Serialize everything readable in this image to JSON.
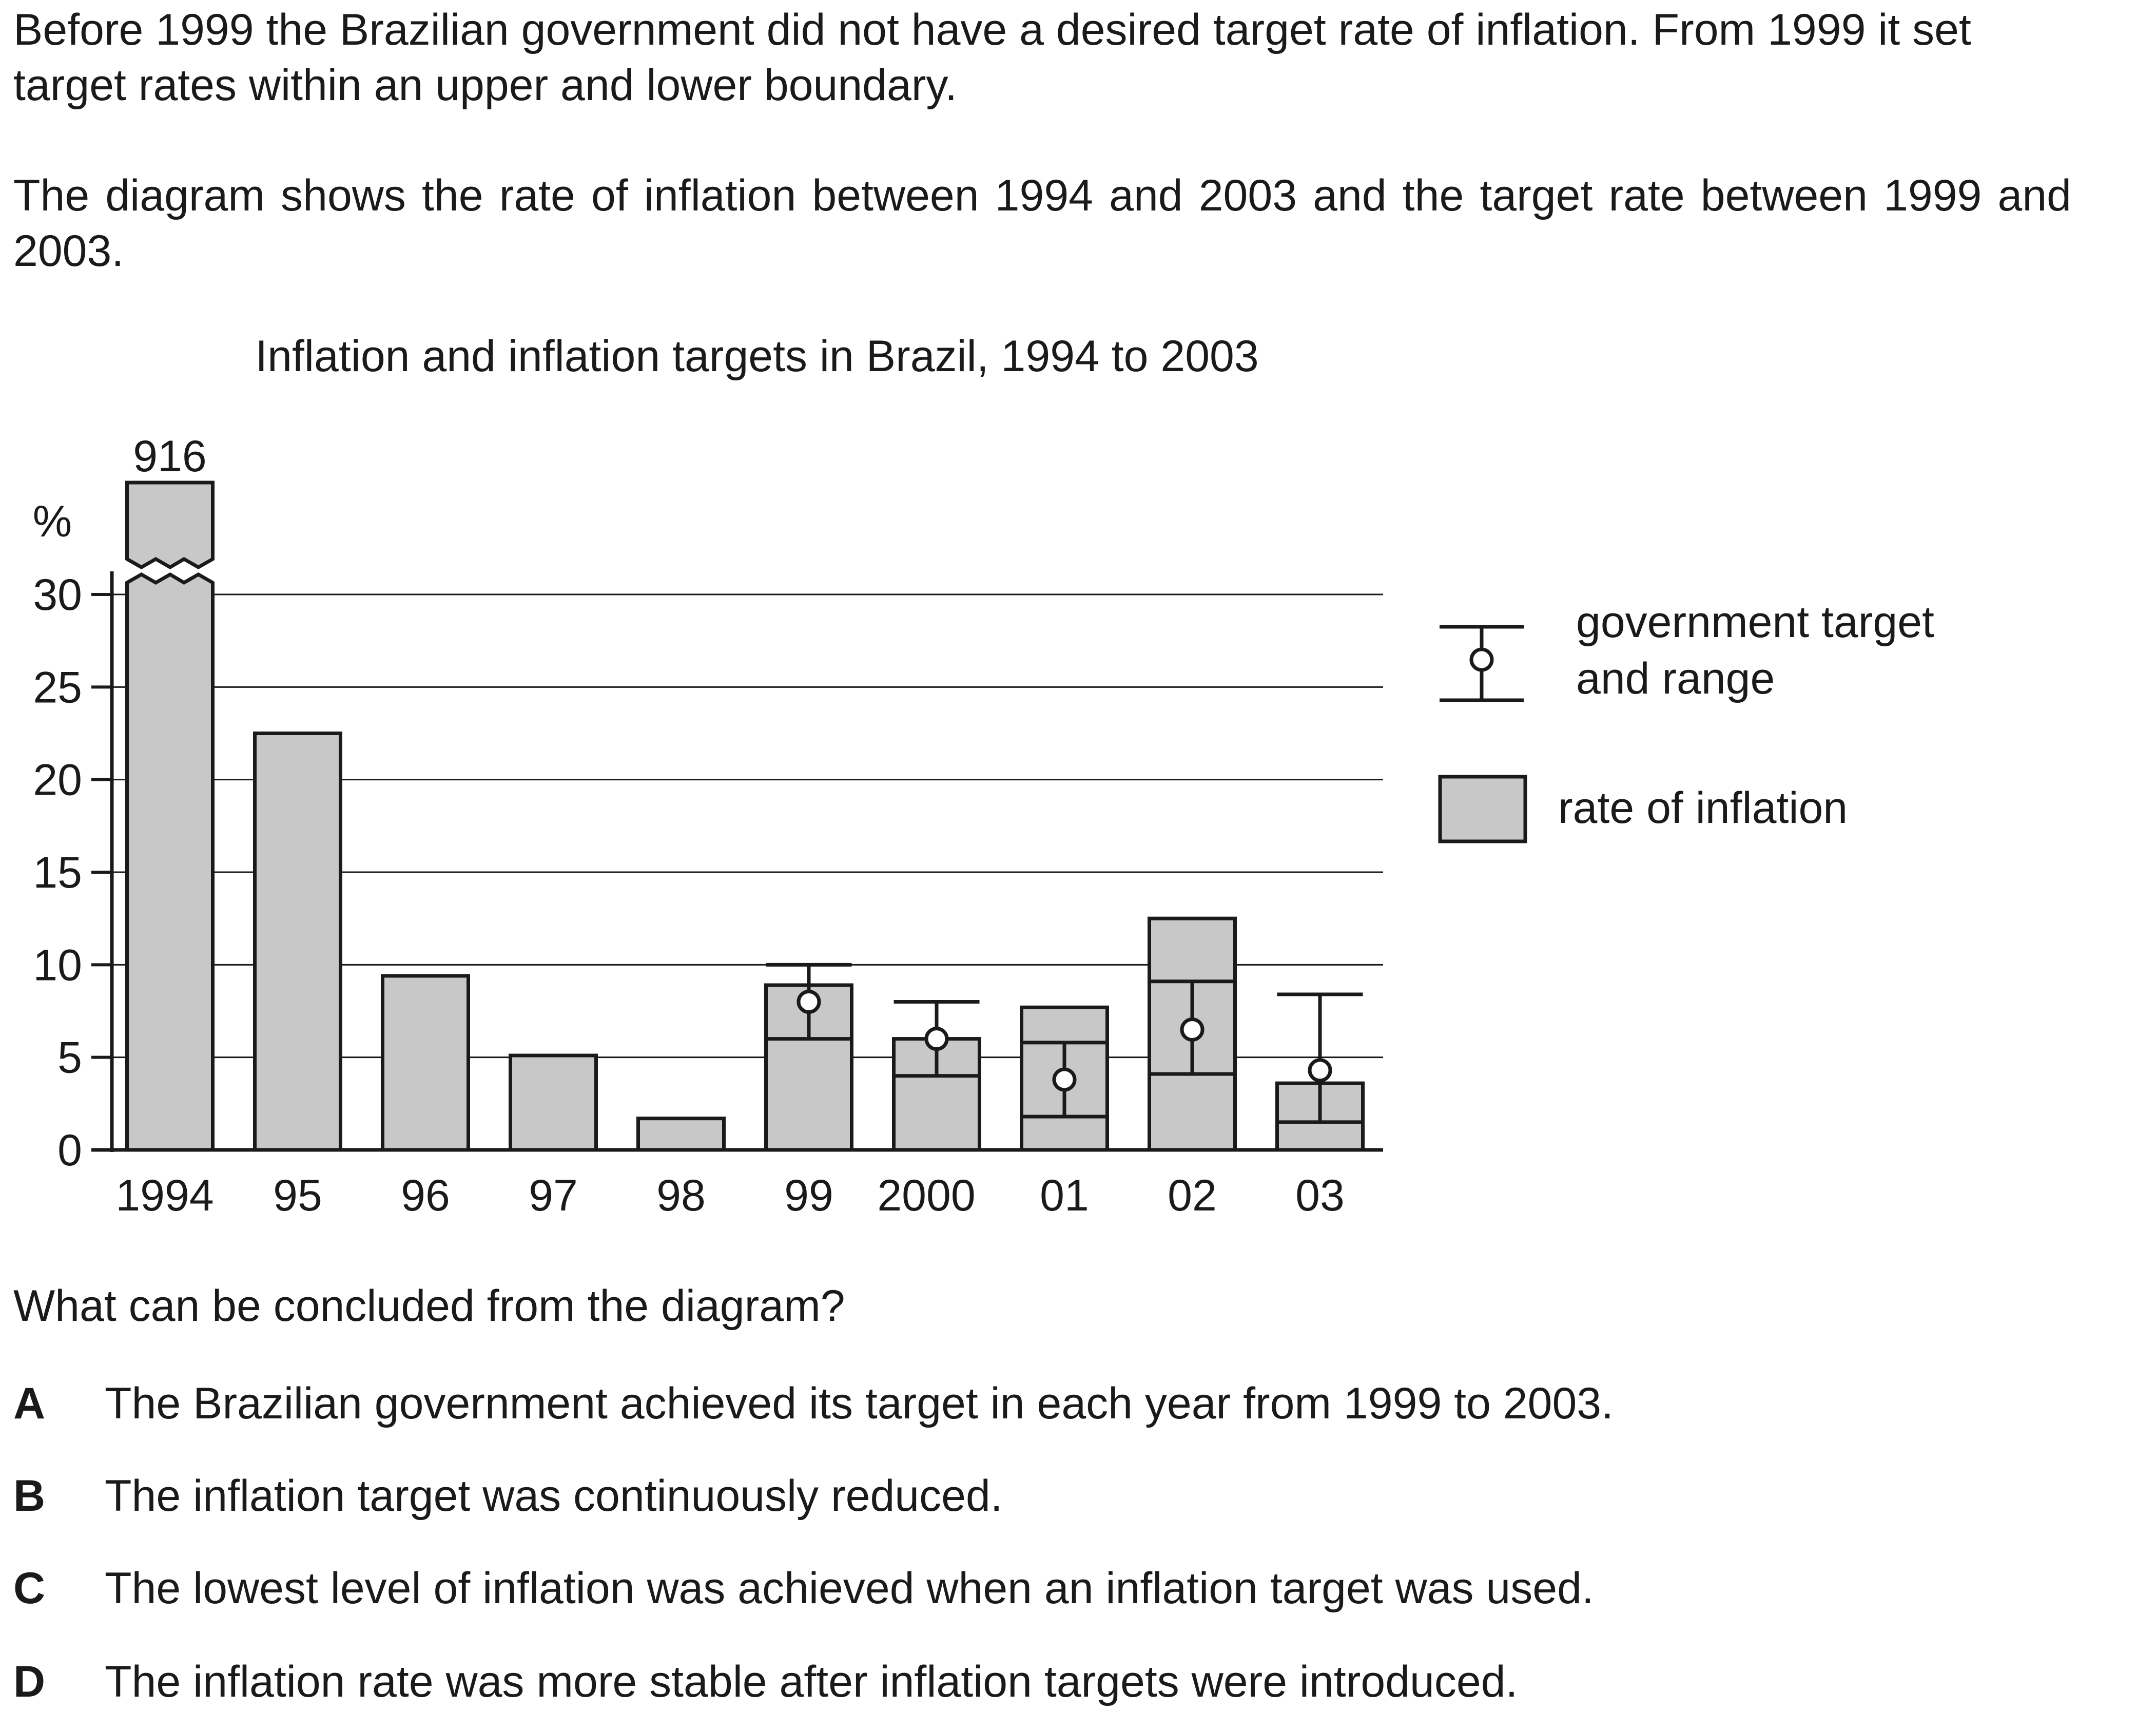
{
  "intro": {
    "p1": "Before 1999 the Brazilian government did not have a desired target rate of inflation. From 1999 it set target rates within an upper and lower boundary.",
    "p2": "The diagram shows the rate of inflation between 1994 and 2003 and the target rate between 1999 and 2003."
  },
  "chart_data": {
    "type": "bar",
    "title": "Inflation and inflation targets in Brazil, 1994 to 2003",
    "ylabel": "%",
    "ylim": [
      0,
      30
    ],
    "yticks": [
      0,
      5,
      10,
      15,
      20,
      25,
      30
    ],
    "grid": true,
    "axis_break": true,
    "legend_position": "right",
    "categories": [
      "1994",
      "95",
      "96",
      "97",
      "98",
      "99",
      "2000",
      "01",
      "02",
      "03"
    ],
    "series": [
      {
        "name": "rate of inflation",
        "values": [
          916,
          22.5,
          9.4,
          5.1,
          1.7,
          8.9,
          6.0,
          7.7,
          12.5,
          3.6
        ],
        "value_labels": [
          "916",
          "",
          "",
          "",
          "",
          "",
          "",
          "",
          "",
          ""
        ]
      },
      {
        "name": "government target and range",
        "target": [
          null,
          null,
          null,
          null,
          null,
          8.0,
          6.0,
          3.8,
          6.5,
          4.3
        ],
        "lower": [
          null,
          null,
          null,
          null,
          null,
          6.0,
          4.0,
          1.8,
          4.1,
          1.5
        ],
        "upper": [
          null,
          null,
          null,
          null,
          null,
          10.0,
          8.0,
          5.8,
          9.1,
          8.4
        ]
      }
    ],
    "legend": [
      "government target\nand range",
      "rate of inflation"
    ],
    "colors": {
      "bar_fill": "#c8c8c8",
      "stroke": "#1a1a1a",
      "grid": "#1a1a1a"
    }
  },
  "question": "What can be concluded from the diagram?",
  "options": [
    {
      "letter": "A",
      "text": "The Brazilian government achieved its target in each year from 1999 to 2003."
    },
    {
      "letter": "B",
      "text": "The inflation target was continuously reduced."
    },
    {
      "letter": "C",
      "text": "The lowest level of inflation was achieved when an inflation target was used."
    },
    {
      "letter": "D",
      "text": "The inflation rate was more stable after inflation targets were introduced."
    }
  ]
}
